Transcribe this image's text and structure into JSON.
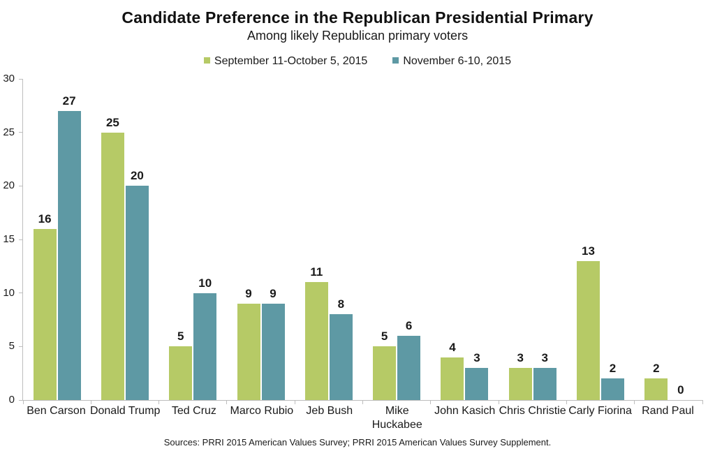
{
  "chart_data": {
    "type": "bar",
    "title": "Candidate Preference in the Republican Presidential Primary",
    "subtitle": "Among likely Republican primary voters",
    "categories": [
      "Ben Carson",
      "Donald Trump",
      "Ted Cruz",
      "Marco Rubio",
      "Jeb Bush",
      "Mike\nHuckabee",
      "John Kasich",
      "Chris Christie",
      "Carly Fiorina",
      "Rand Paul"
    ],
    "series": [
      {
        "name": "September 11-October 5, 2015",
        "color": "#b6ca66",
        "values": [
          16,
          25,
          5,
          9,
          11,
          5,
          4,
          3,
          13,
          2
        ]
      },
      {
        "name": "November 6-10, 2015",
        "color": "#5e99a4",
        "values": [
          27,
          20,
          10,
          9,
          8,
          6,
          3,
          3,
          2,
          0
        ]
      }
    ],
    "xlabel": "",
    "ylabel": "",
    "ylim": [
      0,
      30
    ],
    "yticks": [
      0,
      5,
      10,
      15,
      20,
      25,
      30
    ],
    "grid": false,
    "legend_position": "top",
    "source": "Sources: PRRI 2015 American Values Survey; PRRI 2015 American Values Survey Supplement."
  },
  "colors": {
    "axis": "#bdbdbd",
    "text": "#1a1a1a"
  }
}
